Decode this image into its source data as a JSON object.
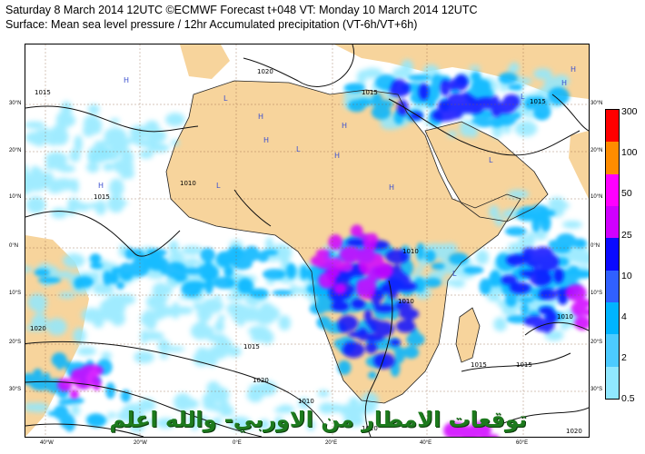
{
  "title_line1": "Saturday 8 March 2014 12UTC ©ECMWF Forecast t+048 VT: Monday 10 March 2014 12UTC",
  "title_line2": "Surface: Mean sea level pressure / 12hr Accumulated precipitation (VT-6h/VT+6h)",
  "lon_ticks": [
    "40°W",
    "20°W",
    "0°E",
    "20°E",
    "40°E",
    "60°E"
  ],
  "lat_ticks": [
    "30°N",
    "20°N",
    "10°N",
    "0°N",
    "10°S",
    "20°S",
    "30°S"
  ],
  "colorbar": {
    "labels": [
      "300",
      "100",
      "50",
      "25",
      "10",
      "4",
      "2",
      "0.5"
    ],
    "colors": [
      "#ff0000",
      "#ff8c00",
      "#ff00ff",
      "#d000ff",
      "#0a0aff",
      "#3060ff",
      "#00b4ff",
      "#4ccbff",
      "#90e8ff"
    ]
  },
  "isobars": [
    "1020",
    "1015",
    "1010",
    "1015",
    "1010",
    "1015",
    "1010",
    "1015",
    "1015",
    "1010",
    "1015",
    "1020",
    "1020",
    "1010",
    "1015",
    "1010",
    "1020",
    "1020"
  ],
  "pressure_centres": [
    "L",
    "H",
    "H",
    "H",
    "L",
    "H",
    "L",
    "H",
    "H",
    "H",
    "L",
    "H",
    "L",
    "L",
    "H"
  ],
  "overlay_caption": "توقعات الامطار من الاوربي- والله اعلم",
  "colors": {
    "land": "#f7d49c",
    "ocean": "#ffffff",
    "light_precip": "#90e8ff",
    "moderate_precip": "#00b4ff",
    "heavy_precip": "#0a0aff",
    "extreme_precip": "#d000ff",
    "caption": "#1d7a1d"
  }
}
